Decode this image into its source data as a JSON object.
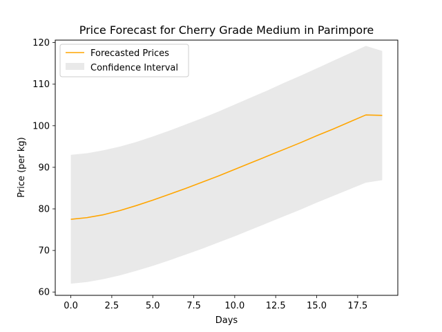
{
  "chart_data": {
    "type": "line",
    "title": "Price Forecast for Cherry Grade Medium in Parimpore",
    "xlabel": "Days",
    "ylabel": "Price (per kg)",
    "xlim": [
      -0.95,
      19.95
    ],
    "ylim": [
      59.2,
      120.6
    ],
    "xticks": [
      0.0,
      2.5,
      5.0,
      7.5,
      10.0,
      12.5,
      15.0,
      17.5
    ],
    "xtick_labels": [
      "0.0",
      "2.5",
      "5.0",
      "7.5",
      "10.0",
      "12.5",
      "15.0",
      "17.5"
    ],
    "yticks": [
      60,
      70,
      80,
      90,
      100,
      110,
      120
    ],
    "ytick_labels": [
      "60",
      "70",
      "80",
      "90",
      "100",
      "110",
      "120"
    ],
    "grid": false,
    "legend_position": "top-left",
    "x": [
      0,
      1,
      2,
      3,
      4,
      5,
      6,
      7,
      8,
      9,
      10,
      11,
      12,
      13,
      14,
      15,
      16,
      17,
      18,
      19
    ],
    "series": [
      {
        "name": "Forecasted Prices",
        "color": "#ffa500",
        "values": [
          77.5,
          77.9,
          78.6,
          79.6,
          80.8,
          82.1,
          83.5,
          84.9,
          86.4,
          87.9,
          89.5,
          91.1,
          92.7,
          94.3,
          95.9,
          97.6,
          99.2,
          100.9,
          102.6,
          102.5
        ]
      }
    ],
    "band": {
      "name": "Confidence Interval",
      "color": "#d3d3d3",
      "lower": [
        62.0,
        62.4,
        63.1,
        64.0,
        65.1,
        66.3,
        67.6,
        69.0,
        70.4,
        71.9,
        73.4,
        75.0,
        76.6,
        78.2,
        79.8,
        81.5,
        83.1,
        84.7,
        86.3,
        86.9
      ],
      "upper": [
        93.0,
        93.4,
        94.1,
        95.0,
        96.1,
        97.4,
        98.8,
        100.3,
        101.8,
        103.4,
        105.1,
        106.8,
        108.5,
        110.3,
        112.0,
        113.8,
        115.6,
        117.4,
        119.2,
        118.0
      ]
    }
  }
}
